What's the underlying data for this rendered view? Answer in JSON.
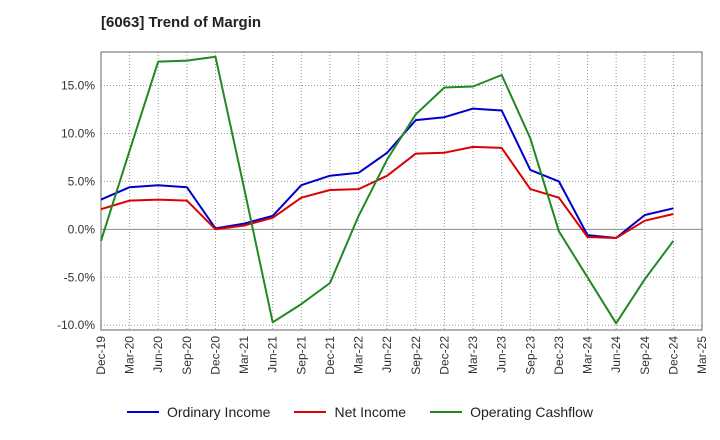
{
  "title": "[6063]  Trend of Margin",
  "chart_data": {
    "type": "line",
    "x": [
      "Dec-19",
      "Mar-20",
      "Jun-20",
      "Sep-20",
      "Dec-20",
      "Mar-21",
      "Jun-21",
      "Sep-21",
      "Dec-21",
      "Mar-22",
      "Jun-22",
      "Sep-22",
      "Dec-22",
      "Mar-23",
      "Jun-23",
      "Sep-23",
      "Dec-23",
      "Mar-24",
      "Jun-24",
      "Sep-24",
      "Dec-24",
      "Mar-25"
    ],
    "x_tick_labels": [
      "Dec-19",
      "Mar-20",
      "Jun-20",
      "Sep-20",
      "Dec-20",
      "Mar-21",
      "Jun-21",
      "Sep-21",
      "Dec-21",
      "Mar-22",
      "Jun-22",
      "Sep-22",
      "Dec-22",
      "Mar-23",
      "Jun-23",
      "Sep-23",
      "Dec-23",
      "Mar-24",
      "Jun-24",
      "Sep-24",
      "Dec-24",
      "Mar-25"
    ],
    "y_ticks": [
      -10,
      -5,
      0,
      5,
      10,
      15
    ],
    "y_tick_labels": [
      "-10.0%",
      "-5.0%",
      "0.0%",
      "5.0%",
      "10.0%",
      "15.0%"
    ],
    "ylim": [
      -10.5,
      18.5
    ],
    "y_unit": "%",
    "grid": true,
    "legend_position": "bottom",
    "series": [
      {
        "name": "Ordinary Income",
        "color": "#0000cc",
        "values": [
          3.1,
          4.4,
          4.6,
          4.4,
          0.1,
          0.6,
          1.4,
          4.6,
          5.6,
          5.9,
          8.0,
          11.4,
          11.7,
          12.6,
          12.4,
          6.2,
          5.0,
          -0.6,
          -0.9,
          1.5,
          2.2,
          null
        ]
      },
      {
        "name": "Net Income",
        "color": "#dd0000",
        "values": [
          2.1,
          3.0,
          3.1,
          3.0,
          0.0,
          0.4,
          1.2,
          3.3,
          4.1,
          4.2,
          5.6,
          7.9,
          8.0,
          8.6,
          8.5,
          4.2,
          3.3,
          -0.8,
          -0.9,
          0.9,
          1.6,
          null
        ]
      },
      {
        "name": "Operating Cashflow",
        "color": "#228822",
        "values": [
          -1.2,
          8.2,
          17.5,
          17.6,
          18.0,
          4.3,
          -9.7,
          -7.8,
          -5.6,
          1.4,
          7.3,
          12.0,
          14.8,
          14.9,
          16.1,
          9.5,
          -0.2,
          -5.0,
          -9.8,
          -5.2,
          -1.2,
          null
        ]
      }
    ]
  }
}
